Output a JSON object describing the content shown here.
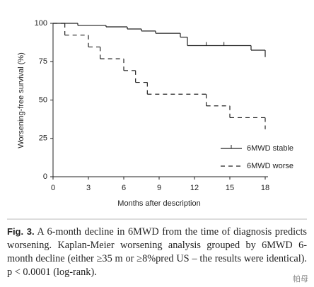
{
  "chart_data": {
    "type": "step",
    "ylabel": "Worsening-free survival (%)",
    "xlabel": "Months after description",
    "xlim": [
      0,
      18
    ],
    "xticks": [
      0,
      3,
      6,
      9,
      12,
      15,
      18
    ],
    "ylim": [
      0,
      100
    ],
    "yticks": [
      0,
      25,
      50,
      75,
      100
    ],
    "legend": "lower right",
    "series": [
      {
        "name": "6MWD stable",
        "color": "#222222",
        "dash": false,
        "x": [
          0,
          2.1,
          4.5,
          6.3,
          7.5,
          8.7,
          10.8,
          11.4,
          16.8,
          18
        ],
        "values": [
          100,
          98.6,
          97.7,
          96.3,
          95,
          93.5,
          91,
          85.5,
          82.5,
          78
        ],
        "censored": [
          13,
          14.5
        ]
      },
      {
        "name": "6MWD worse",
        "color": "#222222",
        "dash": true,
        "x": [
          0,
          1,
          3,
          4,
          6,
          7,
          8,
          13,
          15,
          18
        ],
        "values": [
          100,
          92.3,
          84.6,
          76.9,
          69.2,
          61.5,
          53.8,
          46.2,
          38.5,
          31
        ]
      }
    ]
  },
  "caption": {
    "label": "Fig. 3.",
    "text": "A 6-month decline in 6MWD from the time of diagnosis predicts worsening. Kaplan-Meier worsening analysis grouped by 6MWD 6-month decline (either ≥35 m or ≥8%pred US – the results were identical). p < 0.0001 (log-rank)."
  },
  "watermark": "帕母"
}
